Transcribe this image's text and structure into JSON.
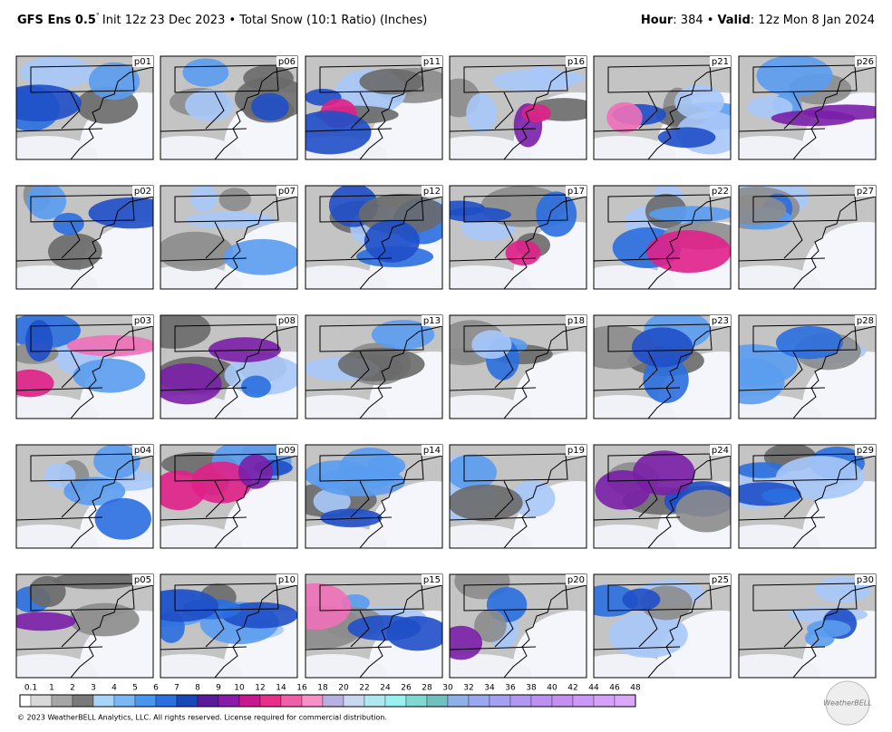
{
  "header": {
    "title_bold": "GFS Ens 0.5",
    "degree": "°",
    "title_rest": "Init 12z 23 Dec 2023 • Total Snow (10:1 Ratio) (Inches)",
    "hour_label": "Hour",
    "hour_value": ": 384 •",
    "valid_label": "Valid",
    "valid_value": ": 12z Mon 8 Jan 2024"
  },
  "panels": [
    [
      "p01",
      "p06",
      "p11",
      "p16",
      "p21",
      "p26"
    ],
    [
      "p02",
      "p07",
      "p12",
      "p17",
      "p22",
      "p27"
    ],
    [
      "p03",
      "p08",
      "p13",
      "p18",
      "p23",
      "p28"
    ],
    [
      "p04",
      "p09",
      "p14",
      "p19",
      "p24",
      "p29"
    ],
    [
      "p05",
      "p10",
      "p15",
      "p20",
      "p25",
      "p30"
    ]
  ],
  "colorbar": {
    "labels": [
      "0.1",
      "1",
      "2",
      "3",
      "4",
      "5",
      "6",
      "7",
      "8",
      "9",
      "10",
      "12",
      "14",
      "16",
      "18",
      "20",
      "22",
      "24",
      "26",
      "28",
      "30",
      "32",
      "34",
      "36",
      "38",
      "40",
      "42",
      "44",
      "46",
      "48"
    ]
  },
  "footer": {
    "copyright": "© 2023 WeatherBELL Analytics, LLC. All rights reserved. License required for commercial distribution.",
    "logo": "WeatherBELL"
  }
}
